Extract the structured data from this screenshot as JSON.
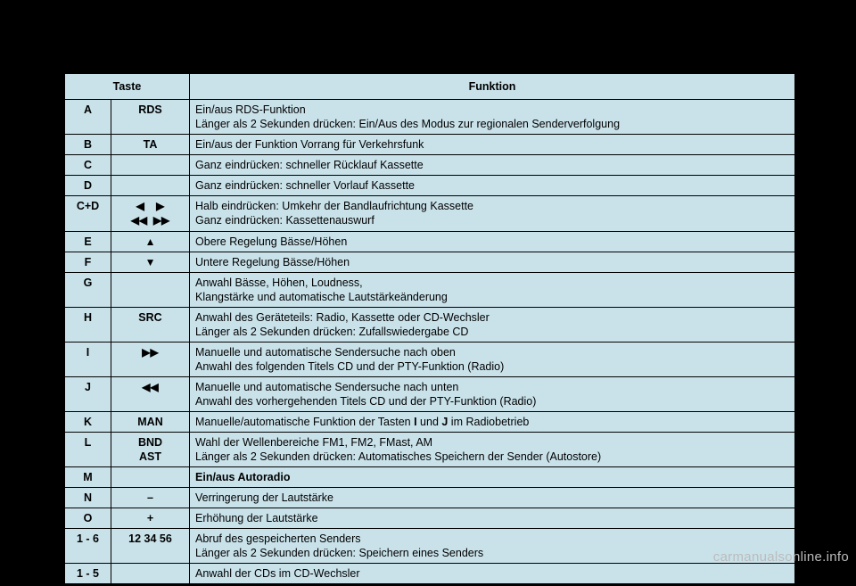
{
  "table": {
    "background_color": "#c9e2ea",
    "border_color": "#000000",
    "font_family": "Arial",
    "header": {
      "taste": "Taste",
      "funktion": "Funktion"
    },
    "rows": [
      {
        "c1": "A",
        "c2": "RDS",
        "c3a": "Ein/aus RDS-Funktion",
        "c3b": "Länger als 2 Sekunden drücken: Ein/Aus des Modus zur regionalen Senderverfolgung"
      },
      {
        "c1": "B",
        "c2": "TA",
        "c3a": "Ein/aus der Funktion Vorrang für Verkehrsfunk"
      },
      {
        "c1": "C",
        "c2": "",
        "c3a": "Ganz eindrücken: schneller Rücklauf Kassette"
      },
      {
        "c1": "D",
        "c2": "",
        "c3a": "Ganz eindrücken: schneller Vorlauf Kassette"
      },
      {
        "c1": "C+D",
        "c2sym": "◀    ▶\n◀◀  ▶▶",
        "c3a": "Halb eindrücken: Umkehr der Bandlaufrichtung Kassette",
        "c3b": "Ganz eindrücken: Kassettenauswurf"
      },
      {
        "c1": "E",
        "c2sym": "▲",
        "c3a": "Obere Regelung Bässe/Höhen"
      },
      {
        "c1": "F",
        "c2sym": "▼",
        "c3a": "Untere Regelung Bässe/Höhen"
      },
      {
        "c1": "G",
        "c2": "",
        "c3a": "Anwahl Bässe, Höhen, Loudness,",
        "c3b": "Klangstärke und automatische Lautstärkeänderung"
      },
      {
        "c1": "H",
        "c2": "SRC",
        "c3a": "Anwahl des Geräteteils: Radio, Kassette oder CD-Wechsler",
        "c3b": "Länger als 2 Sekunden drücken: Zufallswiedergabe CD"
      },
      {
        "c1": "I",
        "c2sym": "▶▶",
        "c3a": "Manuelle und automatische Sendersuche nach oben",
        "c3b": "Anwahl des folgenden Titels CD und der PTY-Funktion (Radio)"
      },
      {
        "c1": "J",
        "c2sym": "◀◀",
        "c3a": "Manuelle und automatische Sendersuche nach unten",
        "c3b": "Anwahl des vorhergehenden Titels CD und der PTY-Funktion (Radio)"
      },
      {
        "c1": "K",
        "c2": "MAN",
        "c3_html": "Manuelle/automatische Funktion der Tasten <b>I</b> und <b>J</b> im Radiobetrieb"
      },
      {
        "c1": "L",
        "c2": "BND\nAST",
        "c3a": "Wahl der Wellenbereiche FM1, FM2, FMast, AM",
        "c3b": "Länger als 2 Sekunden drücken: Automatisches Speichern der Sender (Autostore)"
      },
      {
        "c1": "M",
        "c2": "",
        "c3a_bold": "Ein/aus Autoradio"
      },
      {
        "c1": "N",
        "c2": "–",
        "c3a": "Verringerung der Lautstärke"
      },
      {
        "c1": "O",
        "c2": "+",
        "c3a": "Erhöhung der Lautstärke"
      },
      {
        "c1": "1 - 6",
        "c2": "12 34 56",
        "c3a": "Abruf des gespeicherten Senders",
        "c3b": "Länger als 2 Sekunden drücken: Speichern eines Senders"
      },
      {
        "c1": "1 - 5",
        "c2": "",
        "c3a": "Anwahl der CDs im CD-Wechsler"
      }
    ]
  },
  "watermark": "carmanualsonline.info"
}
